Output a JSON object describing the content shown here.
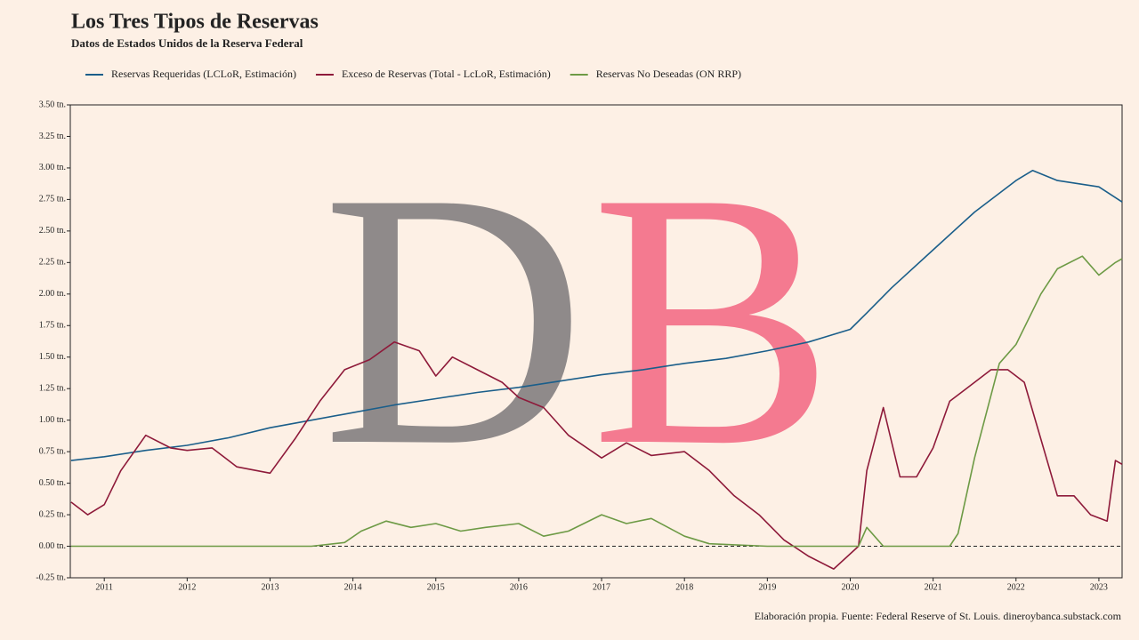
{
  "chart_data": {
    "type": "line",
    "title": "Los Tres Tipos de Reservas",
    "subtitle": "Datos de Estados Unidos de la Reserva Federal",
    "source": "Elaboración propia. Fuente: Federal Reserve of St. Louis. dineroybanca.substack.com",
    "watermark_letters": [
      {
        "text": "D",
        "color": "#8f8a8a"
      },
      {
        "text": "B",
        "color": "#f47a90"
      }
    ],
    "xlim": [
      2010.59,
      2023.28
    ],
    "xticks": [
      2011,
      2012,
      2013,
      2014,
      2015,
      2016,
      2017,
      2018,
      2019,
      2020,
      2021,
      2022,
      2023
    ],
    "ylim": [
      -0.25,
      3.5
    ],
    "yticks": [
      {
        "value": -0.25,
        "label": "-0.25 tn."
      },
      {
        "value": 0,
        "label": "0.00 tn."
      },
      {
        "value": 0.25,
        "label": "0.25 tn."
      },
      {
        "value": 0.5,
        "label": "0.50 tn."
      },
      {
        "value": 0.75,
        "label": "0.75 tn."
      },
      {
        "value": 1,
        "label": "1.00 tn."
      },
      {
        "value": 1.25,
        "label": "1.25 tn."
      },
      {
        "value": 1.5,
        "label": "1.50 tn."
      },
      {
        "value": 1.75,
        "label": "1.75 tn."
      },
      {
        "value": 2,
        "label": "2.00 tn."
      },
      {
        "value": 2.25,
        "label": "2.25 tn."
      },
      {
        "value": 2.5,
        "label": "2.50 tn."
      },
      {
        "value": 2.75,
        "label": "2.75 tn."
      },
      {
        "value": 3,
        "label": "3.00 tn."
      },
      {
        "value": 3.25,
        "label": "3.25 tn."
      },
      {
        "value": 3.5,
        "label": "3.50 tn."
      }
    ],
    "reference_line": 0,
    "series": [
      {
        "name": "Reservas Requeridas (LCLoR, Estimación)",
        "color": "#1a5e8a",
        "x": [
          2010.6,
          2011,
          2011.5,
          2012,
          2012.5,
          2013,
          2013.5,
          2014,
          2014.5,
          2015,
          2015.5,
          2016,
          2016.5,
          2017,
          2017.5,
          2018,
          2018.5,
          2019,
          2019.5,
          2020,
          2020.2,
          2020.5,
          2021,
          2021.5,
          2022,
          2022.2,
          2022.5,
          2023,
          2023.28
        ],
        "values": [
          0.68,
          0.71,
          0.76,
          0.8,
          0.86,
          0.94,
          1.0,
          1.06,
          1.12,
          1.17,
          1.22,
          1.26,
          1.31,
          1.36,
          1.4,
          1.45,
          1.49,
          1.55,
          1.62,
          1.72,
          1.85,
          2.05,
          2.35,
          2.65,
          2.9,
          2.98,
          2.9,
          2.85,
          2.73
        ]
      },
      {
        "name": "Exceso de Reservas (Total - LcLoR, Estimación)",
        "color": "#8e1a3a",
        "x": [
          2010.6,
          2010.8,
          2011,
          2011.2,
          2011.5,
          2011.8,
          2012,
          2012.3,
          2012.6,
          2013,
          2013.3,
          2013.6,
          2013.9,
          2014.2,
          2014.5,
          2014.8,
          2015,
          2015.2,
          2015.5,
          2015.8,
          2016,
          2016.3,
          2016.6,
          2017,
          2017.3,
          2017.6,
          2018,
          2018.3,
          2018.6,
          2018.9,
          2019.2,
          2019.5,
          2019.8,
          2020.1,
          2020.2,
          2020.4,
          2020.6,
          2020.8,
          2021,
          2021.2,
          2021.4,
          2021.7,
          2021.9,
          2022.1,
          2022.3,
          2022.5,
          2022.7,
          2022.9,
          2023.1,
          2023.2,
          2023.28
        ],
        "values": [
          0.35,
          0.25,
          0.33,
          0.6,
          0.88,
          0.78,
          0.76,
          0.78,
          0.63,
          0.58,
          0.85,
          1.15,
          1.4,
          1.48,
          1.62,
          1.55,
          1.35,
          1.5,
          1.4,
          1.3,
          1.18,
          1.1,
          0.88,
          0.7,
          0.82,
          0.72,
          0.75,
          0.6,
          0.4,
          0.25,
          0.05,
          -0.08,
          -0.18,
          0.0,
          0.6,
          1.1,
          0.55,
          0.55,
          0.78,
          1.15,
          1.25,
          1.4,
          1.4,
          1.3,
          0.85,
          0.4,
          0.4,
          0.25,
          0.2,
          0.68,
          0.65
        ]
      },
      {
        "name": "Reservas No Deseadas (ON RRP)",
        "color": "#6d9a45",
        "x": [
          2010.6,
          2013.5,
          2013.9,
          2014.1,
          2014.4,
          2014.7,
          2015,
          2015.3,
          2015.6,
          2016,
          2016.3,
          2016.6,
          2017,
          2017.3,
          2017.6,
          2018,
          2018.3,
          2019,
          2020.1,
          2020.2,
          2020.4,
          2021.2,
          2021.3,
          2021.5,
          2021.8,
          2022,
          2022.3,
          2022.5,
          2022.8,
          2023,
          2023.2,
          2023.28
        ],
        "values": [
          0,
          0,
          0.03,
          0.12,
          0.2,
          0.15,
          0.18,
          0.12,
          0.15,
          0.18,
          0.08,
          0.12,
          0.25,
          0.18,
          0.22,
          0.08,
          0.02,
          0,
          0,
          0.15,
          0,
          0,
          0.1,
          0.7,
          1.45,
          1.6,
          2.0,
          2.2,
          2.3,
          2.15,
          2.25,
          2.28
        ]
      }
    ]
  }
}
